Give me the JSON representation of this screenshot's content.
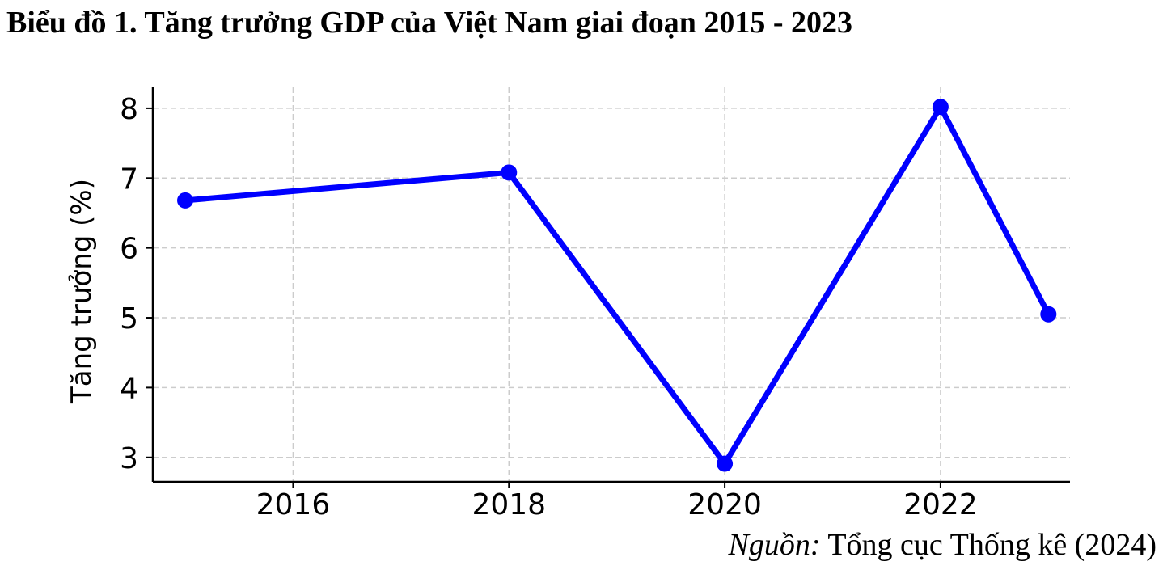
{
  "title": "Biểu đồ 1. Tăng trưởng GDP của Việt Nam giai đoạn 2015 - 2023",
  "source": {
    "label": "Nguồn:",
    "text": "Tổng cục Thống kê (2024)"
  },
  "chart_data": {
    "type": "line",
    "title": "Biểu đồ 1. Tăng trưởng GDP của Việt Nam giai đoạn 2015 - 2023",
    "xlabel": "",
    "ylabel": "Tăng trưởng (%)",
    "x": [
      2015,
      2018,
      2020,
      2022,
      2023
    ],
    "series": [
      {
        "values": [
          6.68,
          7.08,
          2.91,
          8.02,
          5.05
        ]
      }
    ],
    "xticks": [
      2016,
      2018,
      2020,
      2022
    ],
    "yticks": [
      3,
      4,
      5,
      6,
      7,
      8
    ],
    "xlim": [
      2014.7,
      2023.2
    ],
    "ylim": [
      2.65,
      8.3
    ],
    "grid": true,
    "line_color": "#0000ff",
    "grid_color": "#cccccc"
  }
}
